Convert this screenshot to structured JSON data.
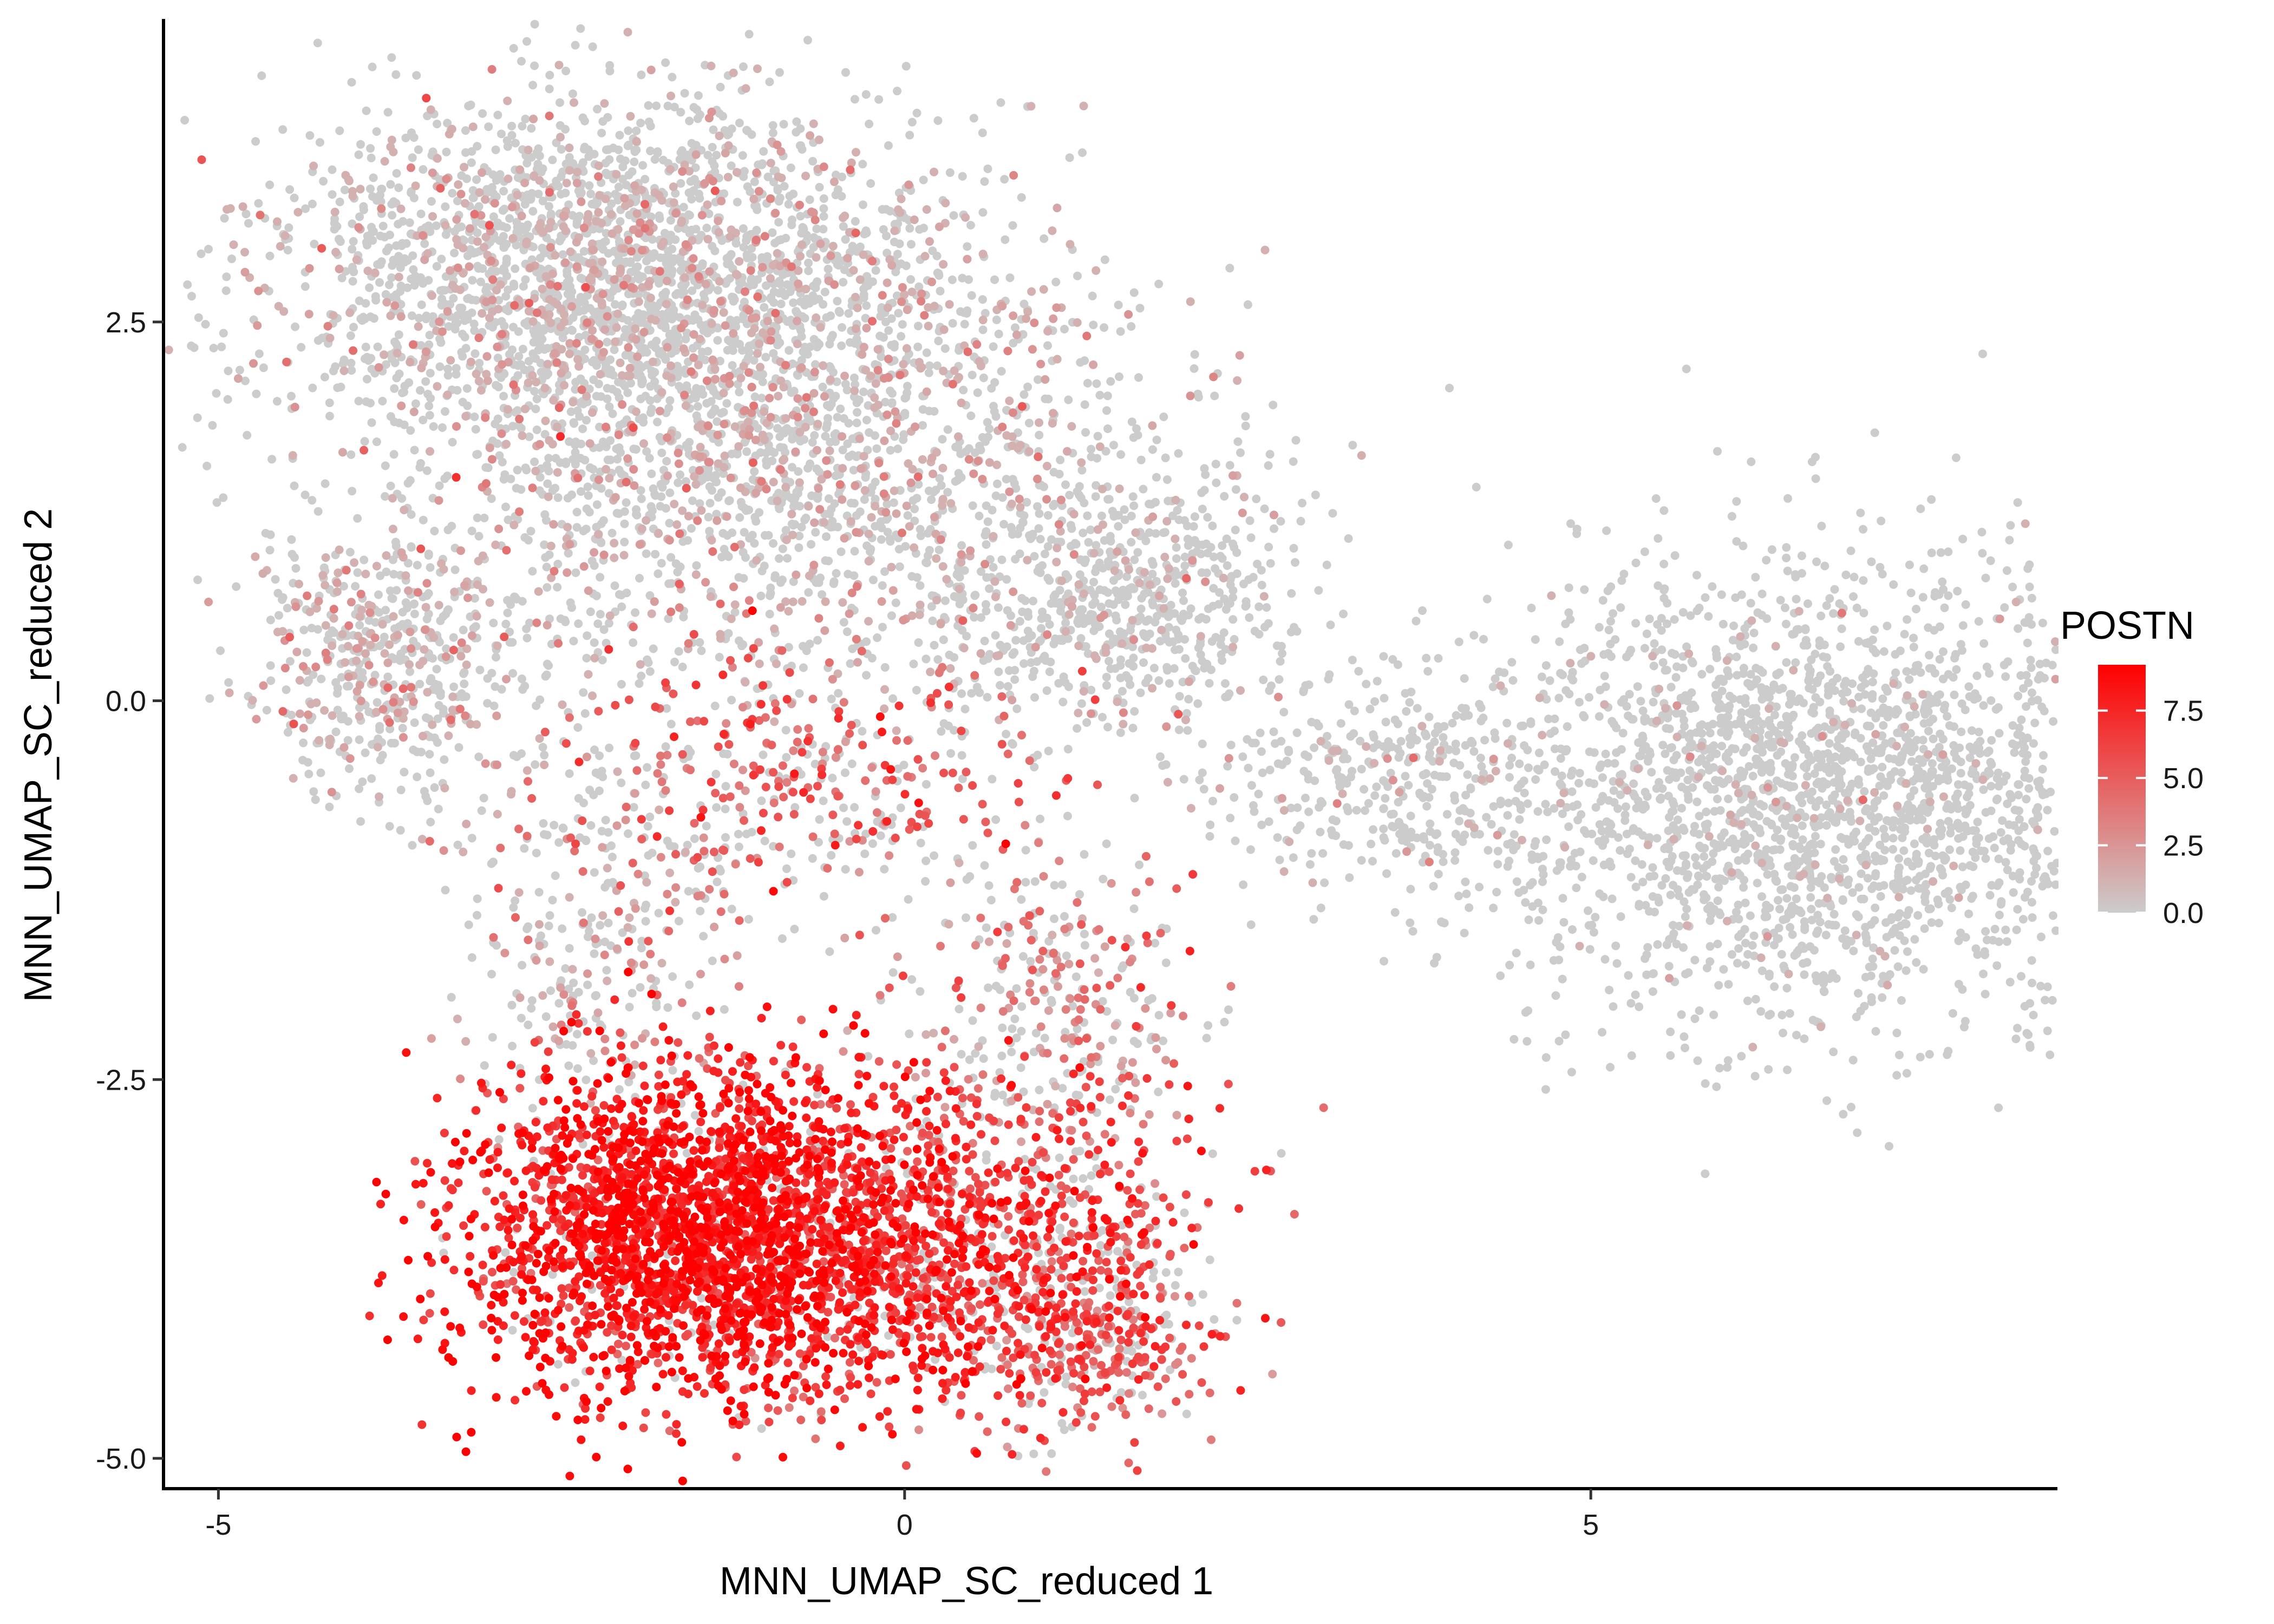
{
  "chart_data": {
    "type": "scatter",
    "title": "",
    "xlabel": "MNN_UMAP_SC_reduced 1",
    "ylabel": "MNN_UMAP_SC_reduced 2",
    "xlim": [
      -5.4,
      8.4
    ],
    "ylim": [
      -5.2,
      4.5
    ],
    "x_ticks": [
      {
        "value": -5,
        "label": "-5"
      },
      {
        "value": 0,
        "label": "0"
      },
      {
        "value": 5,
        "label": "5"
      }
    ],
    "y_ticks": [
      {
        "value": -5,
        "label": "-5.0"
      },
      {
        "value": -2.5,
        "label": "-2.5"
      },
      {
        "value": 0,
        "label": "0.0"
      },
      {
        "value": 2.5,
        "label": "2.5"
      }
    ],
    "grid": false,
    "color_scale": {
      "name": "POSTN",
      "low_color": "#cccccc",
      "high_color": "#ff0000",
      "min": 0,
      "max": 9.2,
      "ticks": [
        {
          "value": 0,
          "label": "0.0"
        },
        {
          "value": 2.5,
          "label": "2.5"
        },
        {
          "value": 5,
          "label": "5.0"
        },
        {
          "value": 7.5,
          "label": "7.5"
        }
      ]
    },
    "legend_position": "right",
    "point_color_channel": "POSTN expression",
    "clusters": [
      {
        "cx": -2.2,
        "cy": 2.9,
        "sx": 1.2,
        "sy": 0.55,
        "n": 2200,
        "expr_mean": 1.0,
        "expr_pos_frac": 0.22
      },
      {
        "cx": -1.0,
        "cy": 1.6,
        "sx": 1.5,
        "sy": 0.75,
        "n": 2000,
        "expr_mean": 1.3,
        "expr_pos_frac": 0.28
      },
      {
        "cx": -3.8,
        "cy": 0.2,
        "sx": 0.5,
        "sy": 0.45,
        "n": 500,
        "expr_mean": 1.2,
        "expr_pos_frac": 0.3
      },
      {
        "cx": 1.6,
        "cy": 0.7,
        "sx": 0.6,
        "sy": 0.45,
        "n": 600,
        "expr_mean": 0.5,
        "expr_pos_frac": 0.12
      },
      {
        "cx": -0.8,
        "cy": -0.6,
        "sx": 1.0,
        "sy": 0.5,
        "n": 450,
        "expr_mean": 5.0,
        "expr_pos_frac": 0.6
      },
      {
        "cx": -2.3,
        "cy": -1.6,
        "sx": 0.5,
        "sy": 0.6,
        "n": 250,
        "expr_mean": 2.0,
        "expr_pos_frac": 0.4
      },
      {
        "cx": -1.5,
        "cy": -3.5,
        "sx": 0.85,
        "sy": 0.55,
        "n": 2400,
        "expr_mean": 8.0,
        "expr_pos_frac": 0.95
      },
      {
        "cx": 0.2,
        "cy": -3.6,
        "sx": 0.9,
        "sy": 0.55,
        "n": 1200,
        "expr_mean": 6.5,
        "expr_pos_frac": 0.85
      },
      {
        "cx": 1.4,
        "cy": -4.2,
        "sx": 0.4,
        "sy": 0.35,
        "n": 300,
        "expr_mean": 5.0,
        "expr_pos_frac": 0.7
      },
      {
        "cx": 1.1,
        "cy": -2.1,
        "sx": 0.5,
        "sy": 0.5,
        "n": 300,
        "expr_mean": 3.5,
        "expr_pos_frac": 0.5
      },
      {
        "cx": 3.4,
        "cy": -0.5,
        "sx": 0.6,
        "sy": 0.35,
        "n": 300,
        "expr_mean": 0.6,
        "expr_pos_frac": 0.12
      },
      {
        "cx": 6.6,
        "cy": -0.6,
        "sx": 1.25,
        "sy": 0.75,
        "n": 2400,
        "expr_mean": 0.3,
        "expr_pos_frac": 0.05
      }
    ]
  }
}
